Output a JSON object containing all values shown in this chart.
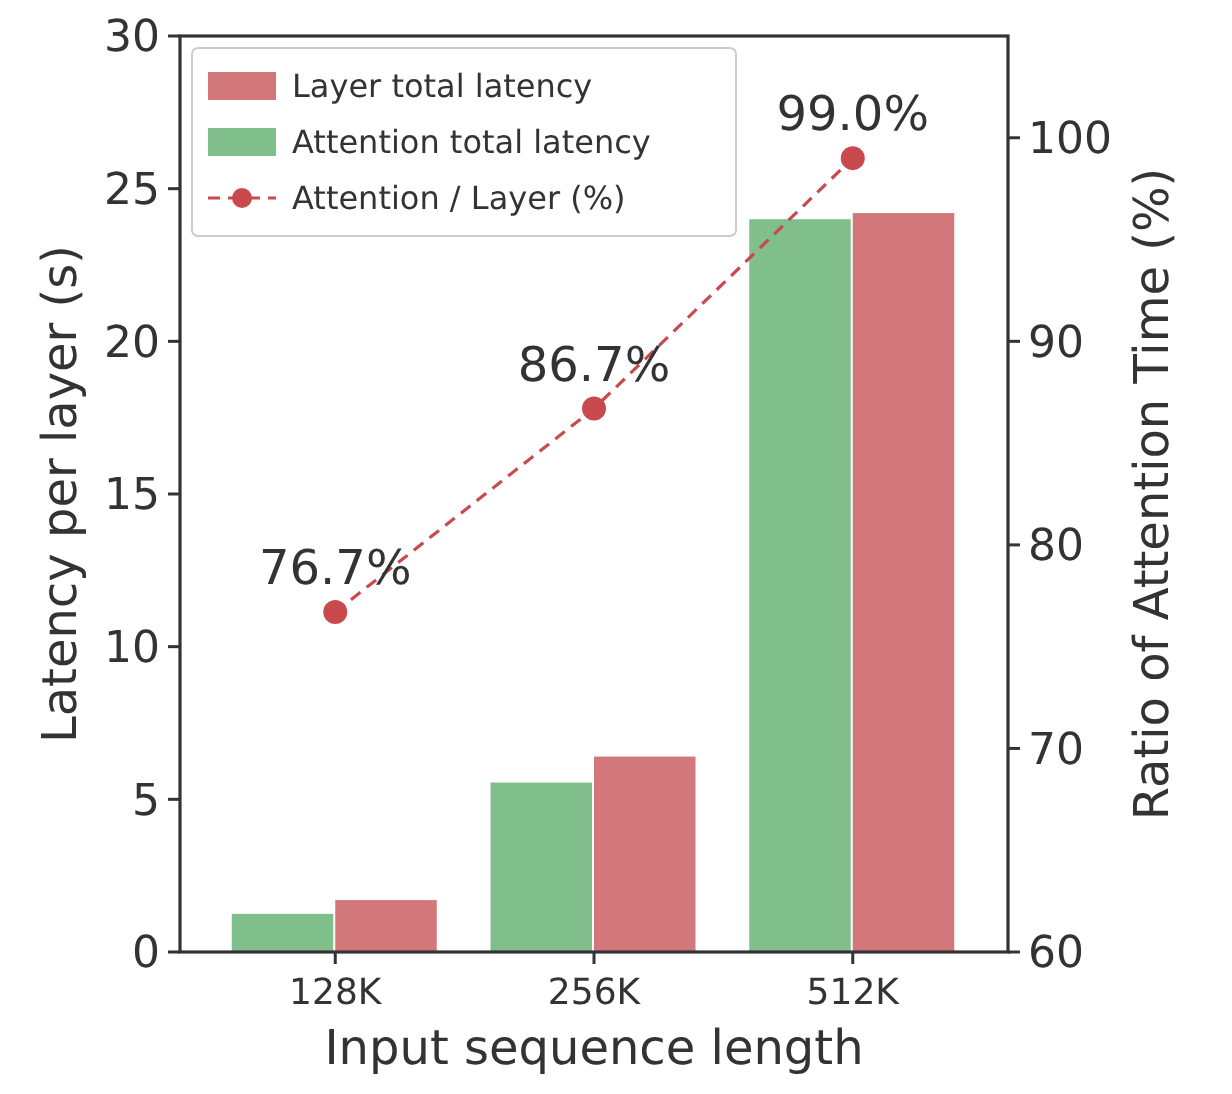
{
  "chart_data": {
    "type": "bar",
    "categories": [
      "128K",
      "256K",
      "512K"
    ],
    "xlabel": "Input sequence length",
    "ylabel": "Latency per layer (s)",
    "y2label": "Ratio of Attention Time (%)",
    "series": [
      {
        "name": "Attention total latency",
        "color": "#80bf8c",
        "values": [
          1.25,
          5.55,
          24.0
        ]
      },
      {
        "name": "Layer total latency",
        "color": "#d2777a",
        "values": [
          1.7,
          6.4,
          24.2
        ]
      },
      {
        "name": "Attention / Layer (%)",
        "type": "line",
        "axis": "y2",
        "color": "#c94a4d",
        "values": [
          76.7,
          86.7,
          99.0
        ],
        "value_labels": [
          "76.7%",
          "86.7%",
          "99.0%"
        ],
        "marker": "circle",
        "line_style": "dashed"
      }
    ],
    "ylim": [
      0,
      30
    ],
    "yticks": [
      0,
      5,
      10,
      15,
      20,
      25,
      30
    ],
    "y2lim": [
      60,
      105
    ],
    "y2ticks": [
      60,
      70,
      80,
      90,
      100
    ],
    "legend": "top left",
    "grid": false
  }
}
